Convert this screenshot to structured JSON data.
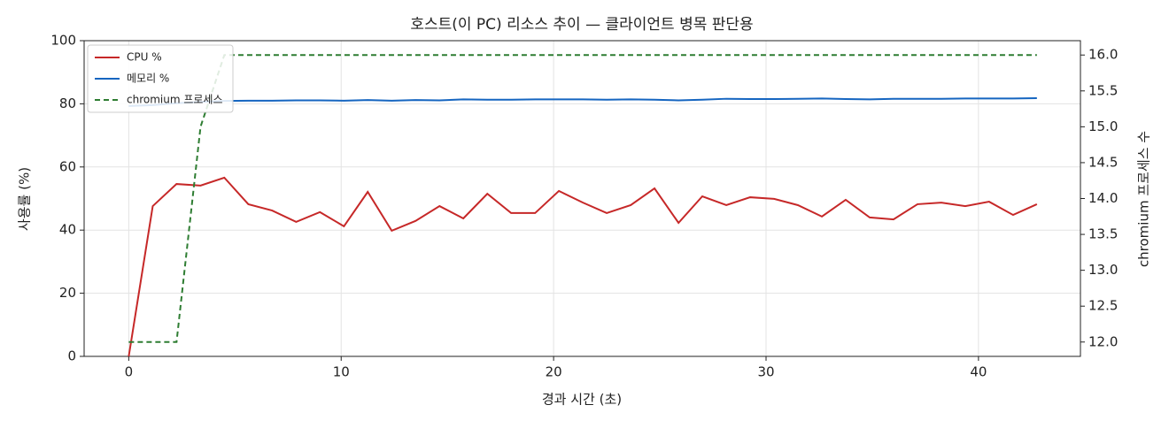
{
  "chart_data": {
    "type": "line",
    "title": "호스트(이 PC) 리소스 추이 — 클라이언트 병목 판단용",
    "x_label": "경과 시간 (초)",
    "y_label": "사용률 (%)",
    "y2_label": "chromium 프로세스 수",
    "x": [
      0,
      1.13,
      2.25,
      3.38,
      4.5,
      5.63,
      6.75,
      7.88,
      9,
      10.13,
      11.25,
      12.38,
      13.5,
      14.63,
      15.75,
      16.88,
      18,
      19.13,
      20.25,
      21.38,
      22.5,
      23.63,
      24.75,
      25.88,
      27,
      28.13,
      29.25,
      30.38,
      31.5,
      32.63,
      33.75,
      34.88,
      36,
      37.13,
      38.25,
      39.38,
      40.5,
      41.63,
      42.75
    ],
    "series": [
      {
        "name": "CPU %",
        "color": "#c62828",
        "linestyle": "solid",
        "values": [
          0,
          47.6,
          54.6,
          54.1,
          56.6,
          48.2,
          46.2,
          42.6,
          45.7,
          41.2,
          52.1,
          39.8,
          42.9,
          47.6,
          43.7,
          51.5,
          45.4,
          45.4,
          52.4,
          48.7,
          45.4,
          47.9,
          53.2,
          42.3,
          50.7,
          47.9,
          50.4,
          49.9,
          47.9,
          44.3,
          49.6,
          44.0,
          43.4,
          48.2,
          48.7,
          47.6,
          49.0,
          44.8,
          48.2
        ]
      },
      {
        "name": "메모리 %",
        "color": "#1565c0",
        "linestyle": "solid",
        "values": [
          79.3,
          79.6,
          80.2,
          80.6,
          80.9,
          81.0,
          81.0,
          81.1,
          81.1,
          81.0,
          81.2,
          81.0,
          81.2,
          81.1,
          81.4,
          81.3,
          81.3,
          81.4,
          81.4,
          81.4,
          81.3,
          81.4,
          81.3,
          81.1,
          81.3,
          81.6,
          81.5,
          81.5,
          81.6,
          81.7,
          81.5,
          81.4,
          81.6,
          81.6,
          81.6,
          81.7,
          81.7,
          81.7,
          81.8
        ]
      },
      {
        "name": "chromium 프로세스",
        "color": "#2e7d32",
        "linestyle": "dashed",
        "axis": "y2",
        "values": [
          12,
          12,
          12,
          15,
          16,
          16,
          16,
          16,
          16,
          16,
          16,
          16,
          16,
          16,
          16,
          16,
          16,
          16,
          16,
          16,
          16,
          16,
          16,
          16,
          16,
          16,
          16,
          16,
          16,
          16,
          16,
          16,
          16,
          16,
          16,
          16,
          16,
          16,
          16
        ]
      }
    ],
    "xlim": [
      -2.1,
      44.8
    ],
    "xticks": [
      0,
      10,
      20,
      30,
      40
    ],
    "ylim": [
      0,
      100
    ],
    "yticks": [
      0,
      20,
      40,
      60,
      80,
      100
    ],
    "y2lim": [
      11.8,
      16.2
    ],
    "y2ticks": [
      {
        "value": 12,
        "label": "12.0"
      },
      12.5,
      {
        "value": 13,
        "label": "13.0"
      },
      13.5,
      {
        "value": 14,
        "label": "14.0"
      },
      14.5,
      {
        "value": 15,
        "label": "15.0"
      },
      15.5,
      {
        "value": 16,
        "label": "16.0"
      }
    ],
    "grid": true,
    "legend": "upper-left"
  }
}
